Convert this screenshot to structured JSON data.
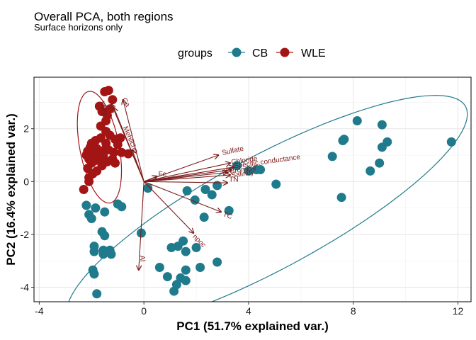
{
  "chart_data": {
    "type": "scatter",
    "title": "Overall PCA, both regions",
    "subtitle": "Surface horizons only",
    "xlabel": "PC1 (51.7% explained var.)",
    "ylabel": "PC2 (16.4% explained var.)",
    "xlim": [
      -4.2,
      12.5
    ],
    "ylim": [
      -4.55,
      3.95
    ],
    "x_ticks": [
      -4,
      0,
      4,
      8,
      12
    ],
    "y_ticks": [
      -4,
      -2,
      0,
      2
    ],
    "grid": true,
    "legend": {
      "title": "groups",
      "position": "top"
    },
    "series": [
      {
        "name": "CB",
        "color": "#1F7A8C",
        "points": [
          [
            -2.2,
            -0.9
          ],
          [
            -2.1,
            -1.25
          ],
          [
            -2.0,
            -1.4
          ],
          [
            -1.85,
            -1.0
          ],
          [
            -1.5,
            -1.15
          ],
          [
            -1.0,
            -0.85
          ],
          [
            -0.85,
            -0.95
          ],
          [
            -1.6,
            -1.9
          ],
          [
            -1.5,
            -2.05
          ],
          [
            -1.9,
            -2.45
          ],
          [
            -1.55,
            -2.6
          ],
          [
            -1.55,
            -2.75
          ],
          [
            -1.3,
            -2.6
          ],
          [
            -1.25,
            -2.75
          ],
          [
            -1.9,
            -2.65
          ],
          [
            -1.95,
            -3.35
          ],
          [
            -1.9,
            -3.5
          ],
          [
            -1.8,
            -4.25
          ],
          [
            -0.1,
            -1.95
          ],
          [
            0.15,
            -0.25
          ],
          [
            0.6,
            -3.25
          ],
          [
            1.05,
            -2.5
          ],
          [
            1.3,
            -2.45
          ],
          [
            1.5,
            -2.25
          ],
          [
            1.6,
            -2.65
          ],
          [
            2.0,
            -2.5
          ],
          [
            1.6,
            -3.35
          ],
          [
            0.9,
            -3.6
          ],
          [
            1.4,
            -3.65
          ],
          [
            1.25,
            -3.9
          ],
          [
            1.15,
            -4.15
          ],
          [
            1.6,
            -3.75
          ],
          [
            1.65,
            -0.35
          ],
          [
            1.95,
            -0.7
          ],
          [
            2.3,
            -1.35
          ],
          [
            2.35,
            -0.3
          ],
          [
            2.8,
            -0.15
          ],
          [
            3.25,
            -1.1
          ],
          [
            2.8,
            -3.05
          ],
          [
            2.15,
            -3.25
          ],
          [
            2.6,
            -0.5
          ],
          [
            3.55,
            0.6
          ],
          [
            4.0,
            0.4
          ],
          [
            4.3,
            0.45
          ],
          [
            4.45,
            0.45
          ],
          [
            5.05,
            -0.1
          ],
          [
            7.2,
            0.95
          ],
          [
            7.6,
            1.55
          ],
          [
            7.65,
            1.6
          ],
          [
            7.55,
            -0.6
          ],
          [
            8.15,
            2.3
          ],
          [
            8.65,
            0.4
          ],
          [
            9.0,
            0.7
          ],
          [
            9.1,
            1.3
          ],
          [
            9.3,
            1.5
          ],
          [
            9.1,
            2.15
          ],
          [
            11.75,
            1.5
          ]
        ]
      },
      {
        "name": "WLE",
        "color": "#A31515",
        "points": [
          [
            -1.5,
            3.4
          ],
          [
            -1.35,
            3.45
          ],
          [
            -1.2,
            3.1
          ],
          [
            -1.3,
            2.75
          ],
          [
            -1.7,
            2.85
          ],
          [
            -1.6,
            2.65
          ],
          [
            -1.4,
            2.5
          ],
          [
            -1.45,
            2.3
          ],
          [
            -1.65,
            2.1
          ],
          [
            -1.45,
            1.9
          ],
          [
            -1.3,
            1.75
          ],
          [
            -1.1,
            1.6
          ],
          [
            -1.0,
            1.4
          ],
          [
            -0.9,
            1.65
          ],
          [
            -0.85,
            1.1
          ],
          [
            -1.15,
            1.1
          ],
          [
            -1.45,
            1.45
          ],
          [
            -1.65,
            1.65
          ],
          [
            -1.85,
            1.55
          ],
          [
            -2.0,
            1.45
          ],
          [
            -2.05,
            1.3
          ],
          [
            -1.8,
            1.25
          ],
          [
            -1.65,
            1.1
          ],
          [
            -1.5,
            1.2
          ],
          [
            -1.35,
            1.2
          ],
          [
            -1.2,
            0.85
          ],
          [
            -1.1,
            0.7
          ],
          [
            -1.4,
            0.75
          ],
          [
            -1.6,
            0.8
          ],
          [
            -1.85,
            0.8
          ],
          [
            -2.2,
            1.0
          ],
          [
            -2.1,
            0.85
          ],
          [
            -2.0,
            0.7
          ],
          [
            -2.15,
            0.5
          ],
          [
            -1.95,
            0.3
          ],
          [
            -2.1,
            0.15
          ],
          [
            -2.1,
            0.0
          ],
          [
            -2.3,
            -0.3
          ],
          [
            -1.8,
            0.4
          ],
          [
            -1.6,
            0.6
          ],
          [
            -0.6,
            1.05
          ],
          [
            -2.15,
            1.15
          ],
          [
            -1.75,
            1.0
          ],
          [
            -1.95,
            1.1
          ],
          [
            -1.55,
            0.95
          ]
        ]
      }
    ],
    "ellipses": [
      {
        "group": "CB",
        "color": "#1F7A8C",
        "center": [
          4.7,
          -1.2
        ],
        "rx": 8.6,
        "ry": 2.15,
        "angle_deg": 28
      },
      {
        "group": "WLE",
        "color": "#A31515",
        "center": [
          -1.7,
          1.3
        ],
        "rx": 2.15,
        "ry": 0.75,
        "angle_deg": 101
      }
    ],
    "loadings": {
      "color": "#7B1A1A",
      "arrows": [
        {
          "label": "Ca",
          "x": -0.8,
          "y": 3.1
        },
        {
          "label": "Na",
          "x": -1.25,
          "y": 2.95
        },
        {
          "label": "Mg",
          "x": -1.15,
          "y": 2.8
        },
        {
          "label": "Mehlichp",
          "x": -0.45,
          "y": 1.2
        },
        {
          "label": "Fe",
          "x": 0.5,
          "y": 0.2
        },
        {
          "label": "Sulfate",
          "x": 2.85,
          "y": 1.0
        },
        {
          "label": "Chloride",
          "x": 3.3,
          "y": 0.7
        },
        {
          "label": "Specific.conductance",
          "x": 3.45,
          "y": 0.55
        },
        {
          "label": "pH",
          "x": 3.35,
          "y": 0.45
        },
        {
          "label": "Bromide",
          "x": 3.2,
          "y": 0.35
        },
        {
          "label": "Salinity",
          "x": 3.3,
          "y": 0.25
        },
        {
          "label": "TN",
          "x": 3.2,
          "y": -0.05
        },
        {
          "label": "TC",
          "x": 2.95,
          "y": -1.15
        },
        {
          "label": "npoc",
          "x": 1.9,
          "y": -1.95
        },
        {
          "label": "Al",
          "x": -0.2,
          "y": -3.35
        }
      ],
      "text_labels": [
        {
          "text": "Ca",
          "x": -0.85,
          "y": 3.1,
          "rot": 58
        },
        {
          "text": "Mehlichp",
          "x": -0.8,
          "y": 2.05,
          "rot": 67
        },
        {
          "text": "Na",
          "x": -1.7,
          "y": 3.0,
          "rot": 70
        },
        {
          "text": "Mg",
          "x": -1.65,
          "y": 2.85,
          "rot": 70
        },
        {
          "text": "Fe",
          "x": 0.55,
          "y": 0.2,
          "rot": 0
        },
        {
          "text": "Sulfate",
          "x": 3.0,
          "y": 1.0,
          "rot": -12
        },
        {
          "text": "Chloride",
          "x": 3.35,
          "y": 0.65,
          "rot": -8
        },
        {
          "text": "Specific.conductance",
          "x": 3.45,
          "y": 0.5,
          "rot": -8
        },
        {
          "text": "pH",
          "x": 3.0,
          "y": 0.3,
          "rot": -8
        },
        {
          "text": "Bromide",
          "x": 3.3,
          "y": 0.3,
          "rot": -8
        },
        {
          "text": "Salinity",
          "x": 3.35,
          "y": 0.15,
          "rot": -8
        },
        {
          "text": "TN",
          "x": 3.25,
          "y": 0.0,
          "rot": 0
        },
        {
          "text": "TC",
          "x": 3.0,
          "y": -1.3,
          "rot": 20
        },
        {
          "text": "npoc",
          "x": 1.85,
          "y": -2.1,
          "rot": 45
        },
        {
          "text": "Al",
          "x": -0.15,
          "y": -2.8,
          "rot": 85
        }
      ]
    }
  }
}
